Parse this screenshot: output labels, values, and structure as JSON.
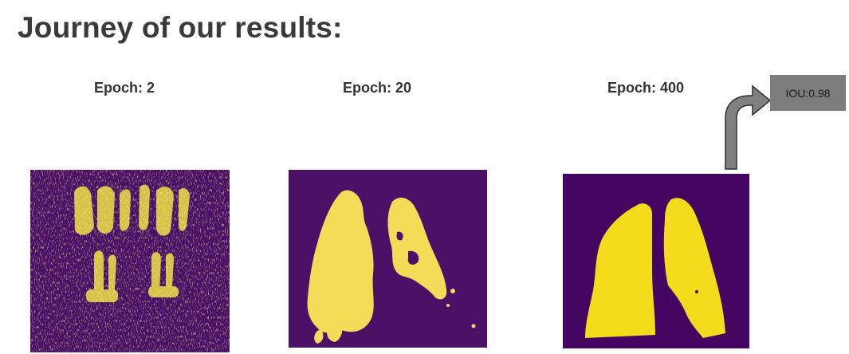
{
  "title": "Journey of our results:",
  "epochs": [
    {
      "label": "Epoch: 2"
    },
    {
      "label": "Epoch: 20"
    },
    {
      "label": "Epoch: 400"
    }
  ],
  "iou_label": "IOU:0.98",
  "colors": {
    "background_purple": "#4a0e66",
    "mask_yellow": "#f6e33f",
    "iou_box": "#7d7d7d",
    "arrow": "#808080"
  }
}
